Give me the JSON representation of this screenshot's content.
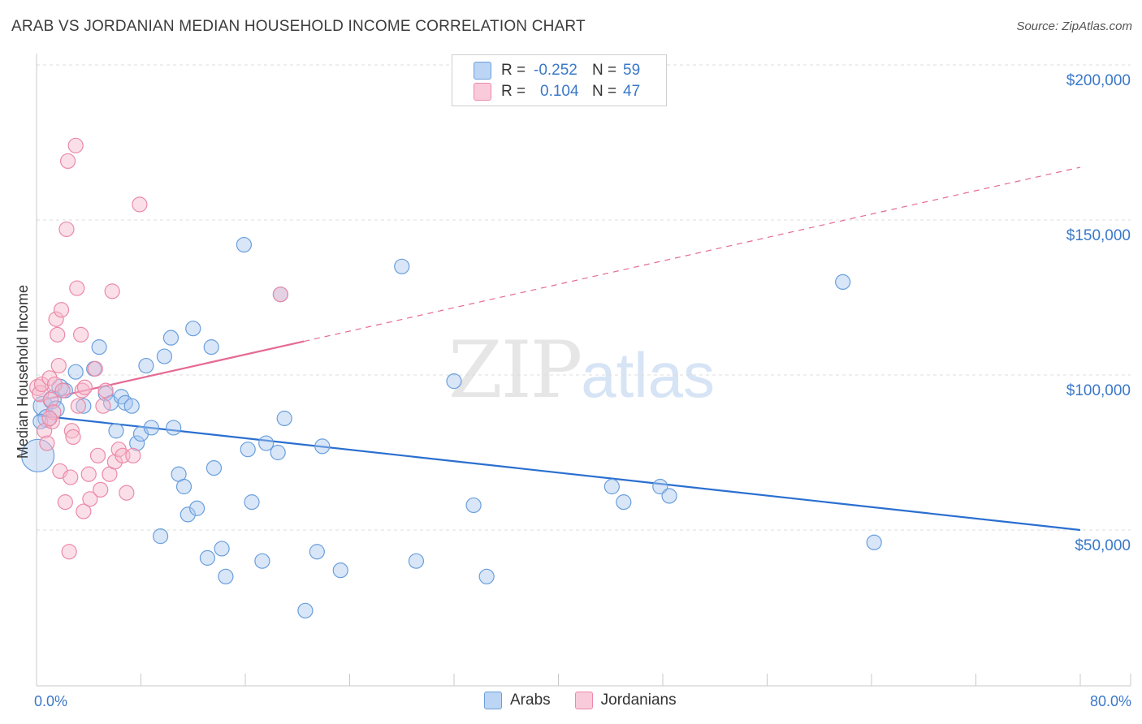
{
  "header": {
    "title": "ARAB VS JORDANIAN MEDIAN HOUSEHOLD INCOME CORRELATION CHART",
    "source": "Source: ZipAtlas.com"
  },
  "watermark": {
    "zip": "ZIP",
    "atlas": "atlas"
  },
  "legend": {
    "rows": [
      {
        "r_label": "R =",
        "r_value": "-0.252",
        "n_label": "N =",
        "n_value": "59"
      },
      {
        "r_label": "R =",
        "r_value": "0.104",
        "n_label": "N =",
        "n_value": "47"
      }
    ]
  },
  "bottom_legend": {
    "arabs": "Arabs",
    "jordanians": "Jordanians"
  },
  "colors": {
    "arab_fill": "#a8c8f0",
    "arab_stroke": "#6a9fdc",
    "arab_line": "#2a6fd0",
    "jord_fill": "#f7b8cc",
    "jord_stroke": "#eb8aa8",
    "jord_line": "#e56a94",
    "grid": "#dcdcdc",
    "axis_text": "#3a78c8"
  },
  "chart_data": {
    "type": "scatter",
    "title": "ARAB VS JORDANIAN MEDIAN HOUSEHOLD INCOME CORRELATION CHART",
    "xlabel": "",
    "ylabel": "Median Household Income",
    "xlim": [
      0,
      80
    ],
    "ylim": [
      0,
      210000
    ],
    "x_tick_labels": {
      "min": "0.0%",
      "max": "80.0%"
    },
    "y_ticks": [
      {
        "value": 50000,
        "label": "$50,000"
      },
      {
        "value": 100000,
        "label": "$100,000"
      },
      {
        "value": 150000,
        "label": "$150,000"
      },
      {
        "value": 200000,
        "label": "$200,000"
      }
    ],
    "series": [
      {
        "name": "Arabs",
        "r": -0.252,
        "n": 59,
        "trend": {
          "x": [
            0,
            80
          ],
          "y": [
            87000,
            50000
          ],
          "dashed_from": null
        },
        "points": [
          [
            0.1,
            74000,
            20
          ],
          [
            0.5,
            90000,
            12
          ],
          [
            0.8,
            86000,
            11
          ],
          [
            1.2,
            92000,
            11
          ],
          [
            1.5,
            89000,
            10
          ],
          [
            1.8,
            96000,
            10
          ],
          [
            2.2,
            95000,
            9
          ],
          [
            3.0,
            101000,
            9
          ],
          [
            3.6,
            90000,
            9
          ],
          [
            4.4,
            102000,
            9
          ],
          [
            4.8,
            109000,
            9
          ],
          [
            5.3,
            94000,
            9
          ],
          [
            5.7,
            91000,
            9
          ],
          [
            6.1,
            82000,
            9
          ],
          [
            6.5,
            93000,
            9
          ],
          [
            6.8,
            91000,
            9
          ],
          [
            7.3,
            90000,
            9
          ],
          [
            7.7,
            78000,
            9
          ],
          [
            8.0,
            81000,
            9
          ],
          [
            8.4,
            103000,
            9
          ],
          [
            8.8,
            83000,
            9
          ],
          [
            9.5,
            48000,
            9
          ],
          [
            9.8,
            106000,
            9
          ],
          [
            10.3,
            112000,
            9
          ],
          [
            10.5,
            83000,
            9
          ],
          [
            10.9,
            68000,
            9
          ],
          [
            11.3,
            64000,
            9
          ],
          [
            11.6,
            55000,
            9
          ],
          [
            12.0,
            115000,
            9
          ],
          [
            12.3,
            57000,
            9
          ],
          [
            13.1,
            41000,
            9
          ],
          [
            13.4,
            109000,
            9
          ],
          [
            13.6,
            70000,
            9
          ],
          [
            14.2,
            44000,
            9
          ],
          [
            14.5,
            35000,
            9
          ],
          [
            15.9,
            142000,
            9
          ],
          [
            16.2,
            76000,
            9
          ],
          [
            16.5,
            59000,
            9
          ],
          [
            17.3,
            40000,
            9
          ],
          [
            17.6,
            78000,
            9
          ],
          [
            18.5,
            75000,
            9
          ],
          [
            18.7,
            126000,
            9
          ],
          [
            19.0,
            86000,
            9
          ],
          [
            20.6,
            24000,
            9
          ],
          [
            21.5,
            43000,
            9
          ],
          [
            21.9,
            77000,
            9
          ],
          [
            23.3,
            37000,
            9
          ],
          [
            28.0,
            135000,
            9
          ],
          [
            29.1,
            40000,
            9
          ],
          [
            32.0,
            98000,
            9
          ],
          [
            33.5,
            58000,
            9
          ],
          [
            34.5,
            35000,
            9
          ],
          [
            44.1,
            64000,
            9
          ],
          [
            45.0,
            59000,
            9
          ],
          [
            47.8,
            64000,
            9
          ],
          [
            48.5,
            61000,
            9
          ],
          [
            61.8,
            130000,
            9
          ],
          [
            64.2,
            46000,
            9
          ],
          [
            0.3,
            85000,
            9
          ]
        ]
      },
      {
        "name": "Jordanians",
        "r": 0.104,
        "n": 47,
        "trend": {
          "x": [
            0,
            80
          ],
          "y": [
            91500,
            167000
          ],
          "dashed_from": 20.5
        },
        "points": [
          [
            0.1,
            96000,
            10
          ],
          [
            0.3,
            94000,
            10
          ],
          [
            0.4,
            97000,
            9
          ],
          [
            0.6,
            82000,
            9
          ],
          [
            0.8,
            78000,
            9
          ],
          [
            1.0,
            99000,
            9
          ],
          [
            1.1,
            92000,
            9
          ],
          [
            1.2,
            85000,
            9
          ],
          [
            1.3,
            88000,
            9
          ],
          [
            1.4,
            97000,
            9
          ],
          [
            1.5,
            118000,
            9
          ],
          [
            1.6,
            113000,
            9
          ],
          [
            1.7,
            103000,
            9
          ],
          [
            1.8,
            69000,
            9
          ],
          [
            1.9,
            121000,
            9
          ],
          [
            2.0,
            95000,
            9
          ],
          [
            2.2,
            59000,
            9
          ],
          [
            2.3,
            147000,
            9
          ],
          [
            2.4,
            169000,
            9
          ],
          [
            2.5,
            43000,
            9
          ],
          [
            2.6,
            67000,
            9
          ],
          [
            2.7,
            82000,
            9
          ],
          [
            2.8,
            80000,
            9
          ],
          [
            3.0,
            174000,
            9
          ],
          [
            3.1,
            128000,
            9
          ],
          [
            3.2,
            90000,
            9
          ],
          [
            3.4,
            113000,
            9
          ],
          [
            3.5,
            95000,
            9
          ],
          [
            3.6,
            56000,
            9
          ],
          [
            3.7,
            96000,
            9
          ],
          [
            4.0,
            68000,
            9
          ],
          [
            4.1,
            60000,
            9
          ],
          [
            4.5,
            102000,
            9
          ],
          [
            4.7,
            74000,
            9
          ],
          [
            4.9,
            63000,
            9
          ],
          [
            5.1,
            90000,
            9
          ],
          [
            5.3,
            95000,
            9
          ],
          [
            5.6,
            68000,
            9
          ],
          [
            5.8,
            127000,
            9
          ],
          [
            6.0,
            72000,
            9
          ],
          [
            6.3,
            76000,
            9
          ],
          [
            6.6,
            74000,
            9
          ],
          [
            6.9,
            62000,
            9
          ],
          [
            7.4,
            74000,
            9
          ],
          [
            7.9,
            155000,
            9
          ],
          [
            18.7,
            126000,
            9
          ],
          [
            1.0,
            86000,
            9
          ]
        ]
      }
    ]
  }
}
